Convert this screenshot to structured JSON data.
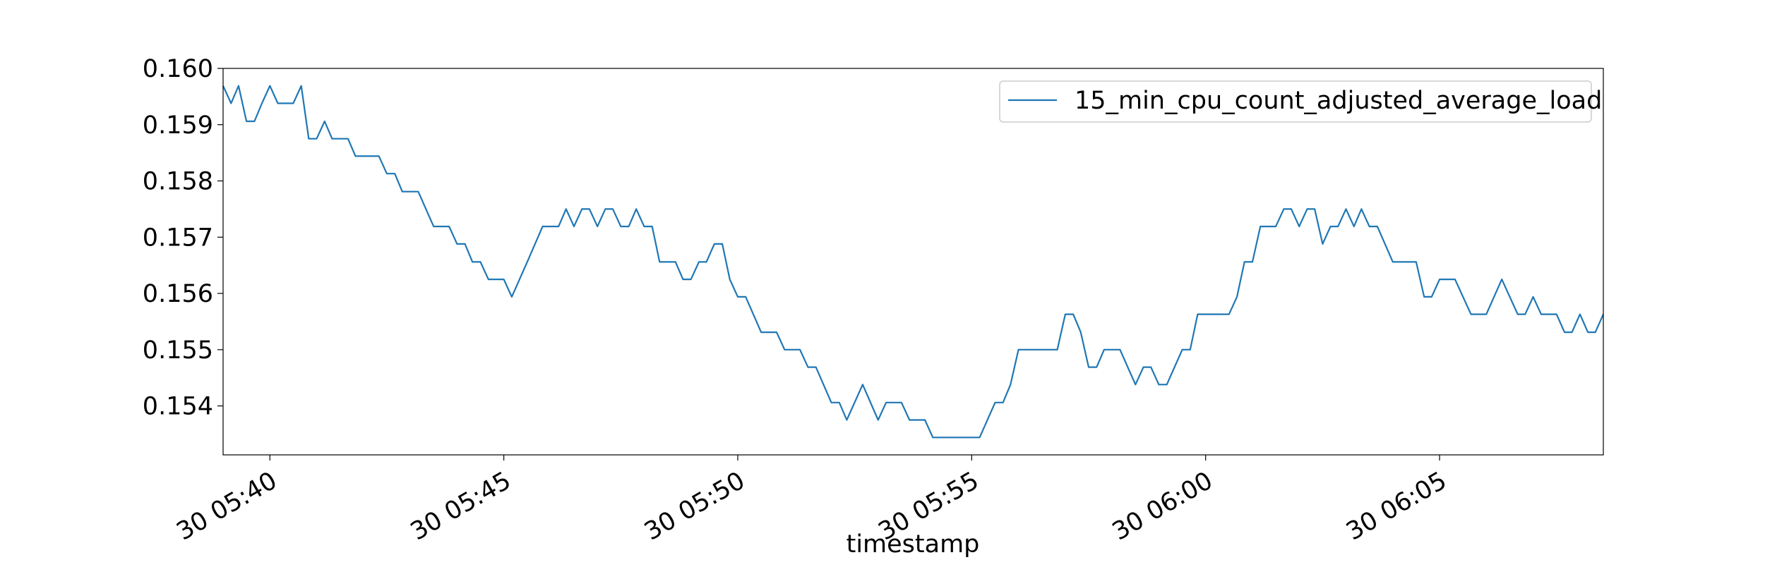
{
  "chart_data": {
    "type": "line",
    "title": "",
    "xlabel": "timestamp",
    "ylabel": "",
    "x_tick_labels": [
      "30 05:40",
      "30 05:45",
      "30 05:50",
      "30 05:55",
      "30 06:00",
      "30 06:05"
    ],
    "x_tick_minutes": [
      0,
      5,
      10,
      15,
      20,
      25
    ],
    "xlim_minutes": [
      -1.0,
      28.5
    ],
    "yticks": [
      "0.154",
      "0.155",
      "0.156",
      "0.157",
      "0.158",
      "0.159",
      "0.160"
    ],
    "ylim": [
      0.15313,
      0.16
    ],
    "grid": false,
    "legend": {
      "placement": "upper right"
    },
    "series": [
      {
        "name": "15_min_cpu_count_adjusted_average_load",
        "color": "#1f77b4",
        "points": [
          [
            -1.0,
            0.15969
          ],
          [
            -0.83,
            0.15938
          ],
          [
            -0.67,
            0.15969
          ],
          [
            -0.5,
            0.15906
          ],
          [
            -0.33,
            0.15906
          ],
          [
            -0.17,
            0.15938
          ],
          [
            0.0,
            0.15969
          ],
          [
            0.17,
            0.15938
          ],
          [
            0.5,
            0.15938
          ],
          [
            0.67,
            0.15969
          ],
          [
            0.83,
            0.15875
          ],
          [
            1.0,
            0.15875
          ],
          [
            1.17,
            0.15906
          ],
          [
            1.33,
            0.15875
          ],
          [
            1.67,
            0.15875
          ],
          [
            1.83,
            0.15844
          ],
          [
            2.33,
            0.15844
          ],
          [
            2.5,
            0.15813
          ],
          [
            2.67,
            0.15813
          ],
          [
            2.83,
            0.15781
          ],
          [
            3.17,
            0.15781
          ],
          [
            3.5,
            0.15719
          ],
          [
            3.83,
            0.15719
          ],
          [
            4.0,
            0.15688
          ],
          [
            4.17,
            0.15688
          ],
          [
            4.33,
            0.15656
          ],
          [
            4.5,
            0.15656
          ],
          [
            4.67,
            0.15625
          ],
          [
            5.0,
            0.15625
          ],
          [
            5.17,
            0.15594
          ],
          [
            5.5,
            0.15656
          ],
          [
            5.83,
            0.15719
          ],
          [
            6.17,
            0.15719
          ],
          [
            6.33,
            0.1575
          ],
          [
            6.5,
            0.15719
          ],
          [
            6.67,
            0.1575
          ],
          [
            6.83,
            0.1575
          ],
          [
            7.0,
            0.15719
          ],
          [
            7.17,
            0.1575
          ],
          [
            7.33,
            0.1575
          ],
          [
            7.5,
            0.15719
          ],
          [
            7.67,
            0.15719
          ],
          [
            7.83,
            0.1575
          ],
          [
            8.0,
            0.15719
          ],
          [
            8.17,
            0.15719
          ],
          [
            8.33,
            0.15656
          ],
          [
            8.67,
            0.15656
          ],
          [
            8.83,
            0.15625
          ],
          [
            9.0,
            0.15625
          ],
          [
            9.17,
            0.15656
          ],
          [
            9.33,
            0.15656
          ],
          [
            9.5,
            0.15688
          ],
          [
            9.67,
            0.15688
          ],
          [
            9.83,
            0.15625
          ],
          [
            10.0,
            0.15594
          ],
          [
            10.17,
            0.15594
          ],
          [
            10.5,
            0.15531
          ],
          [
            10.83,
            0.15531
          ],
          [
            11.0,
            0.155
          ],
          [
            11.33,
            0.155
          ],
          [
            11.5,
            0.15469
          ],
          [
            11.67,
            0.15469
          ],
          [
            12.0,
            0.15406
          ],
          [
            12.17,
            0.15406
          ],
          [
            12.33,
            0.15375
          ],
          [
            12.67,
            0.15438
          ],
          [
            13.0,
            0.15375
          ],
          [
            13.17,
            0.15406
          ],
          [
            13.5,
            0.15406
          ],
          [
            13.67,
            0.15375
          ],
          [
            14.0,
            0.15375
          ],
          [
            14.17,
            0.15344
          ],
          [
            15.17,
            0.15344
          ],
          [
            15.5,
            0.15406
          ],
          [
            15.67,
            0.15406
          ],
          [
            15.83,
            0.15438
          ],
          [
            16.0,
            0.155
          ],
          [
            16.83,
            0.155
          ],
          [
            17.0,
            0.15563
          ],
          [
            17.17,
            0.15563
          ],
          [
            17.33,
            0.15531
          ],
          [
            17.5,
            0.15469
          ],
          [
            17.67,
            0.15469
          ],
          [
            17.83,
            0.155
          ],
          [
            18.17,
            0.155
          ],
          [
            18.5,
            0.15438
          ],
          [
            18.67,
            0.15469
          ],
          [
            18.83,
            0.15469
          ],
          [
            19.0,
            0.15438
          ],
          [
            19.17,
            0.15438
          ],
          [
            19.5,
            0.155
          ],
          [
            19.67,
            0.155
          ],
          [
            19.83,
            0.15563
          ],
          [
            20.5,
            0.15563
          ],
          [
            20.67,
            0.15594
          ],
          [
            20.83,
            0.15656
          ],
          [
            21.0,
            0.15656
          ],
          [
            21.17,
            0.15719
          ],
          [
            21.5,
            0.15719
          ],
          [
            21.67,
            0.1575
          ],
          [
            21.83,
            0.1575
          ],
          [
            22.0,
            0.15719
          ],
          [
            22.17,
            0.1575
          ],
          [
            22.33,
            0.1575
          ],
          [
            22.5,
            0.15688
          ],
          [
            22.67,
            0.15719
          ],
          [
            22.83,
            0.15719
          ],
          [
            23.0,
            0.1575
          ],
          [
            23.17,
            0.15719
          ],
          [
            23.33,
            0.1575
          ],
          [
            23.5,
            0.15719
          ],
          [
            23.67,
            0.15719
          ],
          [
            24.0,
            0.15656
          ],
          [
            24.5,
            0.15656
          ],
          [
            24.67,
            0.15594
          ],
          [
            24.83,
            0.15594
          ],
          [
            25.0,
            0.15625
          ],
          [
            25.33,
            0.15625
          ],
          [
            25.67,
            0.15563
          ],
          [
            26.0,
            0.15563
          ],
          [
            26.33,
            0.15625
          ],
          [
            26.67,
            0.15563
          ],
          [
            26.83,
            0.15563
          ],
          [
            27.0,
            0.15594
          ],
          [
            27.17,
            0.15563
          ],
          [
            27.5,
            0.15563
          ],
          [
            27.67,
            0.15531
          ],
          [
            27.83,
            0.15531
          ],
          [
            28.0,
            0.15563
          ],
          [
            28.17,
            0.15531
          ],
          [
            28.33,
            0.15531
          ],
          [
            28.5,
            0.15563
          ]
        ]
      }
    ]
  }
}
